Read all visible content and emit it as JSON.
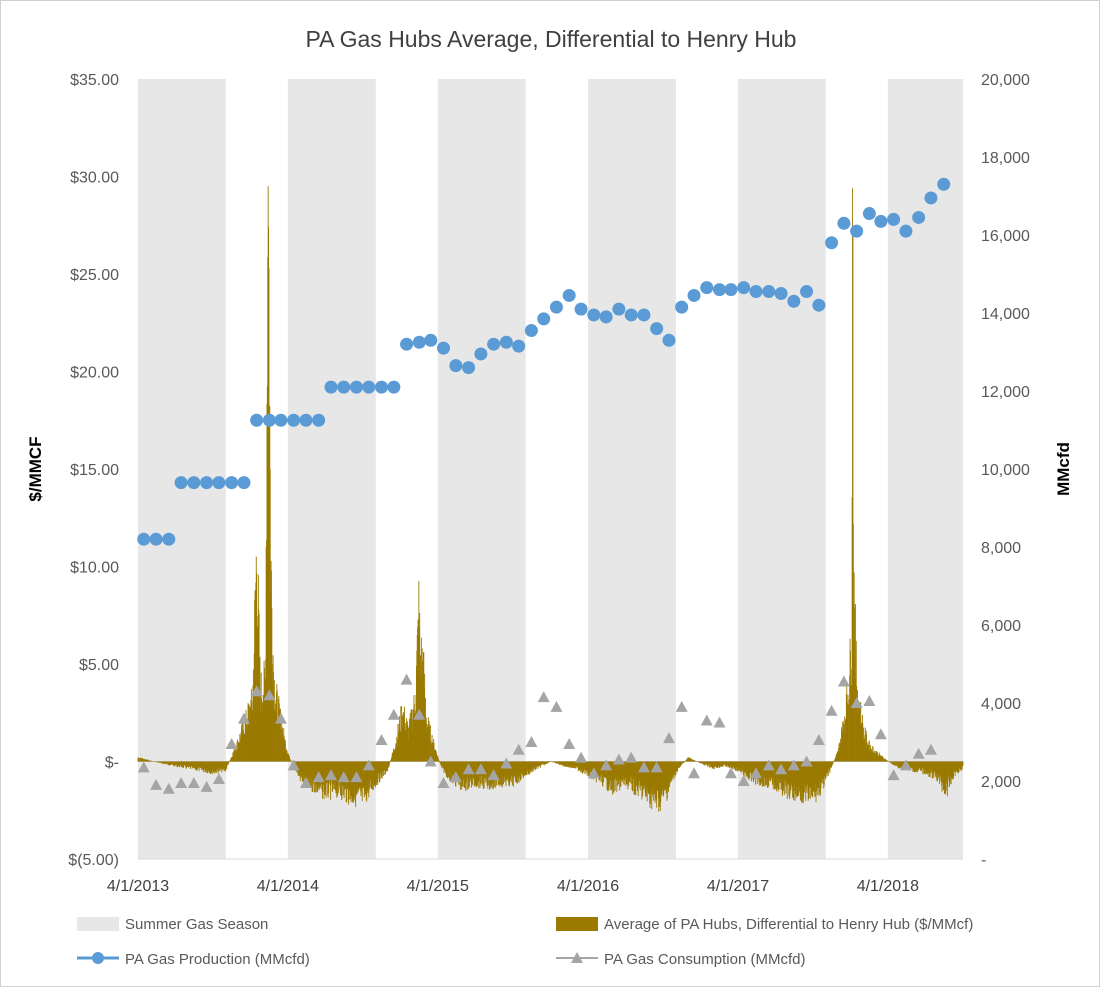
{
  "chart_data": {
    "type": "combo",
    "title": "PA Gas Hubs Average, Differential to Henry Hub",
    "y_left_label": "$/MMCF",
    "y_right_label": "MMcfd",
    "y_left_range": [
      -5,
      35
    ],
    "y_right_range": [
      0,
      20000
    ],
    "y_left_ticks": [
      "$35.00",
      "$30.00",
      "$25.00",
      "$20.00",
      "$15.00",
      "$10.00",
      "$5.00",
      "$-",
      "$(5.00)"
    ],
    "y_right_ticks": [
      "20,000",
      "18,000",
      "16,000",
      "14,000",
      "12,000",
      "10,000",
      "8,000",
      "6,000",
      "4,000",
      "2,000",
      "-"
    ],
    "x_range": [
      "2013-04-01",
      "2018-10-01"
    ],
    "x_ticks": [
      "4/1/2013",
      "4/1/2014",
      "4/1/2015",
      "4/1/2016",
      "4/1/2017",
      "4/1/2018"
    ],
    "summer_seasons": [
      [
        "2013-04-01",
        "2013-11-01"
      ],
      [
        "2014-04-01",
        "2014-11-01"
      ],
      [
        "2015-04-01",
        "2015-11-01"
      ],
      [
        "2016-04-01",
        "2016-11-01"
      ],
      [
        "2017-04-01",
        "2017-11-01"
      ],
      [
        "2018-04-01",
        "2018-11-01"
      ]
    ],
    "differential": {
      "name": "Average of PA Hubs, Differential to Henry Hub ($/MMcf)",
      "color": "#9a7a00",
      "points": [
        [
          "2013-04-01",
          0.2
        ],
        [
          "2013-04-20",
          0.1
        ],
        [
          "2013-05-10",
          0.0
        ],
        [
          "2013-06-01",
          -0.1
        ],
        [
          "2013-07-01",
          -0.2
        ],
        [
          "2013-08-01",
          -0.3
        ],
        [
          "2013-09-01",
          -0.4
        ],
        [
          "2013-10-01",
          -0.5
        ],
        [
          "2013-11-01",
          -0.4
        ],
        [
          "2013-12-01",
          1.0
        ],
        [
          "2013-12-20",
          2.0
        ],
        [
          "2014-01-05",
          3.0
        ],
        [
          "2014-01-15",
          10.5
        ],
        [
          "2014-01-24",
          3.5
        ],
        [
          "2014-02-05",
          4.0
        ],
        [
          "2014-02-12",
          29.5
        ],
        [
          "2014-02-14",
          25.3
        ],
        [
          "2014-02-18",
          10.6
        ],
        [
          "2014-02-22",
          7.0
        ],
        [
          "2014-02-26",
          4.0
        ],
        [
          "2014-03-05",
          3.0
        ],
        [
          "2014-03-15",
          2.0
        ],
        [
          "2014-03-25",
          1.0
        ],
        [
          "2014-04-05",
          0.2
        ],
        [
          "2014-05-01",
          -0.8
        ],
        [
          "2014-06-01",
          -1.2
        ],
        [
          "2014-07-01",
          -1.5
        ],
        [
          "2014-08-01",
          -1.4
        ],
        [
          "2014-09-01",
          -1.7
        ],
        [
          "2014-10-01",
          -1.8
        ],
        [
          "2014-10-20",
          -1.3
        ],
        [
          "2014-11-10",
          -0.8
        ],
        [
          "2014-12-01",
          -0.4
        ],
        [
          "2014-12-20",
          1.0
        ],
        [
          "2015-01-05",
          2.5
        ],
        [
          "2015-01-20",
          1.5
        ],
        [
          "2015-02-05",
          3.0
        ],
        [
          "2015-02-14",
          7.4
        ],
        [
          "2015-02-18",
          5.2
        ],
        [
          "2015-02-24",
          5.0
        ],
        [
          "2015-03-05",
          2.0
        ],
        [
          "2015-03-20",
          1.0
        ],
        [
          "2015-04-10",
          -0.3
        ],
        [
          "2015-05-01",
          -0.8
        ],
        [
          "2015-06-01",
          -1.2
        ],
        [
          "2015-07-01",
          -1.0
        ],
        [
          "2015-08-01",
          -1.1
        ],
        [
          "2015-09-01",
          -1.0
        ],
        [
          "2015-10-01",
          -1.0
        ],
        [
          "2015-11-01",
          -0.6
        ],
        [
          "2015-12-01",
          -0.3
        ],
        [
          "2016-01-01",
          0.0
        ],
        [
          "2016-02-01",
          -0.2
        ],
        [
          "2016-03-01",
          -0.3
        ],
        [
          "2016-04-01",
          -0.6
        ],
        [
          "2016-05-01",
          -0.9
        ],
        [
          "2016-06-01",
          -1.3
        ],
        [
          "2016-07-01",
          -1.0
        ],
        [
          "2016-08-01",
          -1.4
        ],
        [
          "2016-09-01",
          -1.8
        ],
        [
          "2016-09-20",
          -2.0
        ],
        [
          "2016-10-10",
          -1.5
        ],
        [
          "2016-11-01",
          -0.5
        ],
        [
          "2016-12-01",
          0.2
        ],
        [
          "2017-01-01",
          -0.1
        ],
        [
          "2017-02-01",
          -0.3
        ],
        [
          "2017-03-01",
          -0.2
        ],
        [
          "2017-04-01",
          -0.4
        ],
        [
          "2017-05-01",
          -0.8
        ],
        [
          "2017-06-01",
          -1.0
        ],
        [
          "2017-07-01",
          -1.1
        ],
        [
          "2017-08-01",
          -1.5
        ],
        [
          "2017-09-01",
          -1.6
        ],
        [
          "2017-10-01",
          -1.7
        ],
        [
          "2017-10-25",
          -1.2
        ],
        [
          "2017-11-10",
          -0.5
        ],
        [
          "2017-12-01",
          0.5
        ],
        [
          "2017-12-15",
          2.0
        ],
        [
          "2017-12-28",
          4.0
        ],
        [
          "2018-01-03",
          6.4
        ],
        [
          "2018-01-05",
          29.4
        ],
        [
          "2018-01-08",
          10.0
        ],
        [
          "2018-01-13",
          5.0
        ],
        [
          "2018-01-20",
          3.0
        ],
        [
          "2018-02-01",
          1.5
        ],
        [
          "2018-02-15",
          0.8
        ],
        [
          "2018-03-01",
          0.5
        ],
        [
          "2018-03-20",
          0.2
        ],
        [
          "2018-04-10",
          -0.1
        ],
        [
          "2018-05-01",
          -0.3
        ],
        [
          "2018-06-01",
          -0.4
        ],
        [
          "2018-07-01",
          -0.5
        ],
        [
          "2018-08-01",
          -0.8
        ],
        [
          "2018-08-20",
          -1.5
        ],
        [
          "2018-09-10",
          -0.6
        ],
        [
          "2018-10-01",
          -0.3
        ]
      ]
    },
    "production": {
      "name": "PA Gas Production (MMcfd)",
      "color": "#5b9bd5",
      "points": [
        [
          "2013-04-15",
          8200
        ],
        [
          "2013-05-15",
          8200
        ],
        [
          "2013-06-15",
          8200
        ],
        [
          "2013-07-15",
          9650
        ],
        [
          "2013-08-15",
          9650
        ],
        [
          "2013-09-15",
          9650
        ],
        [
          "2013-10-15",
          9650
        ],
        [
          "2013-11-15",
          9650
        ],
        [
          "2013-12-15",
          9650
        ],
        [
          "2014-01-15",
          11250
        ],
        [
          "2014-02-15",
          11250
        ],
        [
          "2014-03-15",
          11250
        ],
        [
          "2014-04-15",
          11250
        ],
        [
          "2014-05-15",
          11250
        ],
        [
          "2014-06-15",
          11250
        ],
        [
          "2014-07-15",
          12100
        ],
        [
          "2014-08-15",
          12100
        ],
        [
          "2014-09-15",
          12100
        ],
        [
          "2014-10-15",
          12100
        ],
        [
          "2014-11-15",
          12100
        ],
        [
          "2014-12-15",
          12100
        ],
        [
          "2015-01-15",
          13200
        ],
        [
          "2015-02-15",
          13250
        ],
        [
          "2015-03-15",
          13300
        ],
        [
          "2015-04-15",
          13100
        ],
        [
          "2015-05-15",
          12650
        ],
        [
          "2015-06-15",
          12600
        ],
        [
          "2015-07-15",
          12950
        ],
        [
          "2015-08-15",
          13200
        ],
        [
          "2015-09-15",
          13250
        ],
        [
          "2015-10-15",
          13150
        ],
        [
          "2015-11-15",
          13550
        ],
        [
          "2015-12-15",
          13850
        ],
        [
          "2016-01-15",
          14150
        ],
        [
          "2016-02-15",
          14450
        ],
        [
          "2016-03-15",
          14100
        ],
        [
          "2016-04-15",
          13950
        ],
        [
          "2016-05-15",
          13900
        ],
        [
          "2016-06-15",
          14100
        ],
        [
          "2016-07-15",
          13950
        ],
        [
          "2016-08-15",
          13950
        ],
        [
          "2016-09-15",
          13600
        ],
        [
          "2016-10-15",
          13300
        ],
        [
          "2016-11-15",
          14150
        ],
        [
          "2016-12-15",
          14450
        ],
        [
          "2017-01-15",
          14650
        ],
        [
          "2017-02-15",
          14600
        ],
        [
          "2017-03-15",
          14600
        ],
        [
          "2017-04-15",
          14650
        ],
        [
          "2017-05-15",
          14550
        ],
        [
          "2017-06-15",
          14550
        ],
        [
          "2017-07-15",
          14500
        ],
        [
          "2017-08-15",
          14300
        ],
        [
          "2017-09-15",
          14550
        ],
        [
          "2017-10-15",
          14200
        ],
        [
          "2017-11-15",
          15800
        ],
        [
          "2017-12-15",
          16300
        ],
        [
          "2018-01-15",
          16100
        ],
        [
          "2018-02-15",
          16550
        ],
        [
          "2018-03-15",
          16350
        ],
        [
          "2018-04-15",
          16400
        ],
        [
          "2018-05-15",
          16100
        ],
        [
          "2018-06-15",
          16450
        ],
        [
          "2018-07-15",
          16950
        ],
        [
          "2018-08-15",
          17300
        ]
      ]
    },
    "consumption": {
      "name": "PA Gas Consumption (MMcfd)",
      "color": "#a5a5a5",
      "points": [
        [
          "2013-04-15",
          2350
        ],
        [
          "2013-05-15",
          1900
        ],
        [
          "2013-06-15",
          1800
        ],
        [
          "2013-07-15",
          1950
        ],
        [
          "2013-08-15",
          1950
        ],
        [
          "2013-09-15",
          1850
        ],
        [
          "2013-10-15",
          2050
        ],
        [
          "2013-11-15",
          2950
        ],
        [
          "2013-12-15",
          3600
        ],
        [
          "2014-01-15",
          4300
        ],
        [
          "2014-02-15",
          4200
        ],
        [
          "2014-03-15",
          3600
        ],
        [
          "2014-04-15",
          2400
        ],
        [
          "2014-05-15",
          1950
        ],
        [
          "2014-06-15",
          2100
        ],
        [
          "2014-07-15",
          2150
        ],
        [
          "2014-08-15",
          2100
        ],
        [
          "2014-09-15",
          2100
        ],
        [
          "2014-10-15",
          2400
        ],
        [
          "2014-11-15",
          3050
        ],
        [
          "2014-12-15",
          3700
        ],
        [
          "2015-01-15",
          4600
        ],
        [
          "2015-02-15",
          3700
        ],
        [
          "2015-03-15",
          2500
        ],
        [
          "2015-04-15",
          1950
        ],
        [
          "2015-05-15",
          2100
        ],
        [
          "2015-06-15",
          2300
        ],
        [
          "2015-07-15",
          2300
        ],
        [
          "2015-08-15",
          2150
        ],
        [
          "2015-09-15",
          2450
        ],
        [
          "2015-10-15",
          2800
        ],
        [
          "2015-11-15",
          3000
        ],
        [
          "2015-12-15",
          4150
        ],
        [
          "2016-01-15",
          3900
        ],
        [
          "2016-02-15",
          2950
        ],
        [
          "2016-03-15",
          2600
        ],
        [
          "2016-04-15",
          2200
        ],
        [
          "2016-05-15",
          2400
        ],
        [
          "2016-06-15",
          2550
        ],
        [
          "2016-07-15",
          2600
        ],
        [
          "2016-08-15",
          2350
        ],
        [
          "2016-09-15",
          2350
        ],
        [
          "2016-10-15",
          3100
        ],
        [
          "2016-11-15",
          3900
        ],
        [
          "2016-12-15",
          2200
        ],
        [
          "2017-01-15",
          3550
        ],
        [
          "2017-02-15",
          3500
        ],
        [
          "2017-03-15",
          2200
        ],
        [
          "2017-04-15",
          2000
        ],
        [
          "2017-05-15",
          2200
        ],
        [
          "2017-06-15",
          2400
        ],
        [
          "2017-07-15",
          2300
        ],
        [
          "2017-08-15",
          2400
        ],
        [
          "2017-09-15",
          2500
        ],
        [
          "2017-10-15",
          3050
        ],
        [
          "2017-11-15",
          3800
        ],
        [
          "2017-12-15",
          4550
        ],
        [
          "2018-01-15",
          4000
        ],
        [
          "2018-02-15",
          4050
        ],
        [
          "2018-03-15",
          3200
        ],
        [
          "2018-04-15",
          2150
        ],
        [
          "2018-05-15",
          2400
        ],
        [
          "2018-06-15",
          2700
        ],
        [
          "2018-07-15",
          2800
        ]
      ]
    },
    "legend": {
      "placement": "bottom",
      "items": [
        {
          "label": "Summer Gas Season",
          "kind": "season"
        },
        {
          "label": "Average of PA Hubs, Differential to Henry Hub ($/MMcf)",
          "kind": "differential"
        },
        {
          "label": "PA Gas Production (MMcfd)",
          "kind": "production"
        },
        {
          "label": "PA Gas Consumption (MMcfd)",
          "kind": "consumption"
        }
      ]
    },
    "season_color": "#e7e7e7",
    "gridlines": false
  }
}
